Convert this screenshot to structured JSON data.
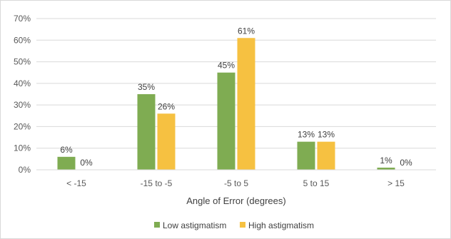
{
  "chart_data": {
    "type": "bar",
    "title": "",
    "xlabel": "Angle of Error (degrees)",
    "ylabel": "",
    "ylim": [
      0,
      70
    ],
    "yticks": [
      "0%",
      "10%",
      "20%",
      "30%",
      "40%",
      "50%",
      "60%",
      "70%"
    ],
    "grid": true,
    "legend_position": "bottom",
    "categories": [
      "< -15",
      "-15 to -5",
      "-5 to 5",
      "5 to 15",
      "> 15"
    ],
    "series": [
      {
        "name": "Low astigmatism",
        "color": "#7fac52",
        "values": [
          6,
          35,
          45,
          13,
          1
        ],
        "labels": [
          "6%",
          "35%",
          "45%",
          "13%",
          "1%"
        ]
      },
      {
        "name": "High astigmatism",
        "color": "#f6c141",
        "values": [
          0,
          26,
          61,
          13,
          0
        ],
        "labels": [
          "0%",
          "26%",
          "61%",
          "13%",
          "0%"
        ]
      }
    ]
  }
}
